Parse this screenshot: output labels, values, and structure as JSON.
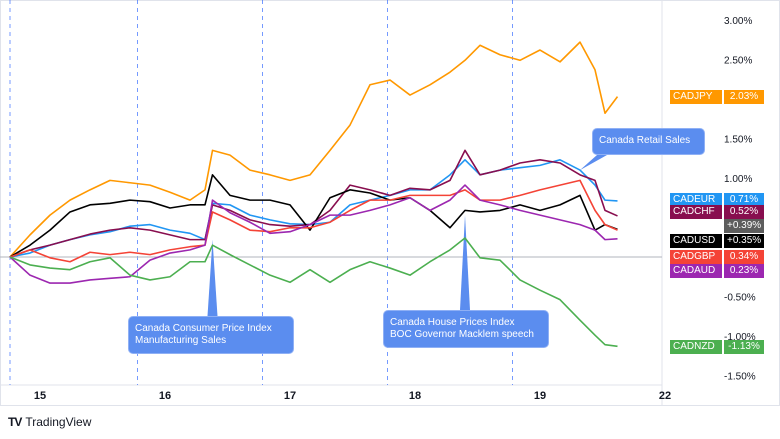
{
  "chart_data": {
    "type": "line",
    "xlabel": "",
    "ylabel": "",
    "x_ticks": [
      "15",
      "16",
      "17",
      "18",
      "19",
      "22"
    ],
    "y_ticks": [
      "3.00%",
      "2.50%",
      "1.50%",
      "1.00%",
      "-0.50%",
      "-1.00%",
      "-1.50%"
    ],
    "y_tick_values": [
      3.0,
      2.5,
      1.5,
      1.0,
      -0.5,
      -1.0,
      -1.5
    ],
    "ylim": [
      -1.6,
      3.3
    ],
    "grid": "vertical dashed session lines",
    "x": [
      14.76,
      14.92,
      15.08,
      15.24,
      15.4,
      15.56,
      15.72,
      15.88,
      16.04,
      16.2,
      16.32,
      16.38,
      16.52,
      16.68,
      16.84,
      17.0,
      17.16,
      17.32,
      17.48,
      17.64,
      17.8,
      17.96,
      18.12,
      18.28,
      18.4,
      18.52,
      18.68,
      18.84,
      19.0,
      19.16,
      19.32,
      19.44,
      19.52,
      19.62
    ],
    "series": [
      {
        "name": "CADJPY",
        "color": "#ff9800",
        "last": "2.03%",
        "values": [
          0,
          0.28,
          0.53,
          0.72,
          0.85,
          0.97,
          0.94,
          0.91,
          0.82,
          0.72,
          0.85,
          1.35,
          1.29,
          1.1,
          1.04,
          0.97,
          1.04,
          1.35,
          1.67,
          2.18,
          2.24,
          2.05,
          2.18,
          2.34,
          2.49,
          2.68,
          2.56,
          2.49,
          2.62,
          2.47,
          2.72,
          2.37,
          1.82,
          2.03
        ]
      },
      {
        "name": "CADEUR",
        "color": "#2196f3",
        "last": "0.71%",
        "values": [
          0,
          0.05,
          0.15,
          0.22,
          0.28,
          0.32,
          0.39,
          0.41,
          0.34,
          0.3,
          0.22,
          0.68,
          0.66,
          0.53,
          0.47,
          0.42,
          0.41,
          0.44,
          0.66,
          0.72,
          0.78,
          0.85,
          0.85,
          1.04,
          1.23,
          1.04,
          1.1,
          1.13,
          1.16,
          1.23,
          1.1,
          0.91,
          0.72,
          0.71
        ]
      },
      {
        "name": "CADCHF",
        "color": "#880e4f",
        "last": "0.52%",
        "values": [
          0,
          0.09,
          0.15,
          0.22,
          0.29,
          0.34,
          0.37,
          0.34,
          0.28,
          0.22,
          0.22,
          0.66,
          0.59,
          0.47,
          0.41,
          0.39,
          0.41,
          0.59,
          0.91,
          0.85,
          0.78,
          0.87,
          0.85,
          0.97,
          1.35,
          1.04,
          1.1,
          1.19,
          1.23,
          1.19,
          1.04,
          0.97,
          0.59,
          0.52
        ]
      },
      {
        "name": "CADUSD",
        "color": "#000000",
        "last": "+0.35%",
        "values": [
          0,
          0.15,
          0.34,
          0.57,
          0.66,
          0.68,
          0.72,
          0.7,
          0.62,
          0.66,
          0.66,
          1.04,
          0.78,
          0.72,
          0.72,
          0.66,
          0.34,
          0.75,
          0.85,
          0.81,
          0.72,
          0.75,
          0.59,
          0.37,
          0.59,
          0.57,
          0.59,
          0.66,
          0.59,
          0.66,
          0.78,
          0.34,
          0.41,
          0.35
        ]
      },
      {
        "name": "CADGBP",
        "color": "#f44336",
        "last": "0.34%",
        "values": [
          0,
          0.09,
          -0.01,
          -0.06,
          0.06,
          0.03,
          0.06,
          0.03,
          0.09,
          0.13,
          0.15,
          0.57,
          0.47,
          0.34,
          0.32,
          0.37,
          0.37,
          0.44,
          0.59,
          0.72,
          0.72,
          0.78,
          0.78,
          0.78,
          0.85,
          0.72,
          0.72,
          0.78,
          0.85,
          0.91,
          0.97,
          0.59,
          0.41,
          0.34
        ]
      },
      {
        "name": "CADAUD",
        "color": "#9c27b0",
        "last": "0.23%",
        "values": [
          0,
          -0.23,
          -0.33,
          -0.33,
          -0.29,
          -0.27,
          -0.25,
          -0.04,
          0.05,
          0.09,
          0.15,
          0.72,
          0.56,
          0.44,
          0.3,
          0.32,
          0.41,
          0.53,
          0.53,
          0.59,
          0.66,
          0.75,
          0.59,
          0.72,
          0.91,
          0.72,
          0.66,
          0.59,
          0.53,
          0.47,
          0.41,
          0.34,
          0.22,
          0.23
        ]
      },
      {
        "name": "CADNZD",
        "color": "#4caf50",
        "last": "-1.13%",
        "values": [
          0,
          -0.1,
          -0.14,
          -0.16,
          -0.06,
          -0.01,
          -0.23,
          -0.29,
          -0.25,
          -0.06,
          -0.06,
          0.15,
          0.03,
          -0.1,
          -0.23,
          -0.32,
          -0.16,
          -0.32,
          -0.16,
          -0.06,
          -0.14,
          -0.23,
          -0.06,
          0.09,
          0.24,
          -0.01,
          -0.04,
          -0.29,
          -0.42,
          -0.54,
          -0.8,
          -0.99,
          -1.11,
          -1.13
        ]
      }
    ],
    "extra_label": {
      "value": "+0.39%",
      "color": "#5d5d5d"
    },
    "annotations": [
      {
        "text": [
          "Canada Retail Sales"
        ],
        "x": 19.32,
        "y": 1.1
      },
      {
        "text": [
          "Canada Consumer Price Index",
          "Manufacturing Sales"
        ],
        "x": 16.38,
        "y": 0.22
      },
      {
        "text": [
          "Canada House Prices Index",
          "BOC Governor Macklem speech"
        ],
        "x": 18.4,
        "y": 0.53
      }
    ],
    "annotation_color": "#5b8def"
  },
  "branding": {
    "logo_mark": "TV",
    "logo_text": "TradingView"
  }
}
